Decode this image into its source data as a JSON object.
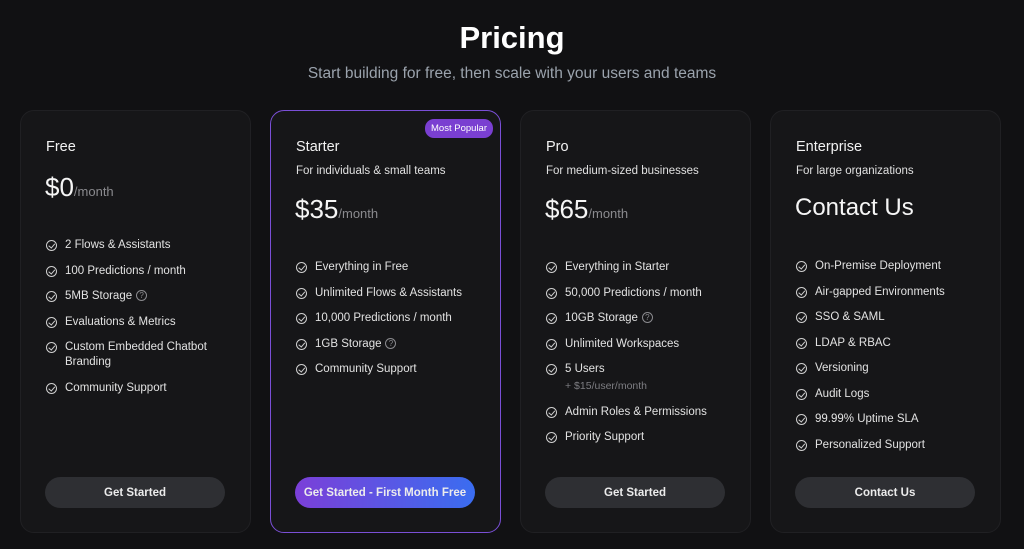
{
  "header": {
    "title": "Pricing",
    "subtitle": "Start building for free, then scale with your users and teams"
  },
  "accent_color": "#7a3fd1",
  "plans": [
    {
      "name": "Free",
      "description": "",
      "price": "$0",
      "period": "/month",
      "features": [
        {
          "text": "2 Flows & Assistants"
        },
        {
          "text": "100 Predictions / month"
        },
        {
          "text": "5MB Storage",
          "info": "?"
        },
        {
          "text": "Evaluations & Metrics"
        },
        {
          "text": "Custom Embedded Chatbot Branding"
        },
        {
          "text": "Community Support"
        }
      ],
      "button": "Get Started"
    },
    {
      "name": "Starter",
      "description": "For individuals & small teams",
      "price": "$35",
      "period": "/month",
      "badge": "Most Popular",
      "features": [
        {
          "text": "Everything in Free"
        },
        {
          "text": "Unlimited Flows & Assistants"
        },
        {
          "text": "10,000 Predictions / month"
        },
        {
          "text": "1GB Storage",
          "info": "?"
        },
        {
          "text": "Community Support"
        }
      ],
      "button": "Get Started - First Month Free"
    },
    {
      "name": "Pro",
      "description": "For medium-sized businesses",
      "price": "$65",
      "period": "/month",
      "features": [
        {
          "text": "Everything in Starter"
        },
        {
          "text": "50,000 Predictions / month"
        },
        {
          "text": "10GB Storage",
          "info": "?"
        },
        {
          "text": "Unlimited Workspaces"
        },
        {
          "text": "5 Users",
          "note": "+ $15/user/month"
        },
        {
          "text": "Admin Roles & Permissions"
        },
        {
          "text": "Priority Support"
        }
      ],
      "button": "Get Started"
    },
    {
      "name": "Enterprise",
      "description": "For large organizations",
      "price": "Contact Us",
      "period": "",
      "features": [
        {
          "text": "On-Premise Deployment"
        },
        {
          "text": "Air-gapped Environments"
        },
        {
          "text": "SSO & SAML"
        },
        {
          "text": "LDAP & RBAC"
        },
        {
          "text": "Versioning"
        },
        {
          "text": "Audit Logs"
        },
        {
          "text": "99.99% Uptime SLA"
        },
        {
          "text": "Personalized Support"
        }
      ],
      "button": "Contact Us"
    }
  ]
}
